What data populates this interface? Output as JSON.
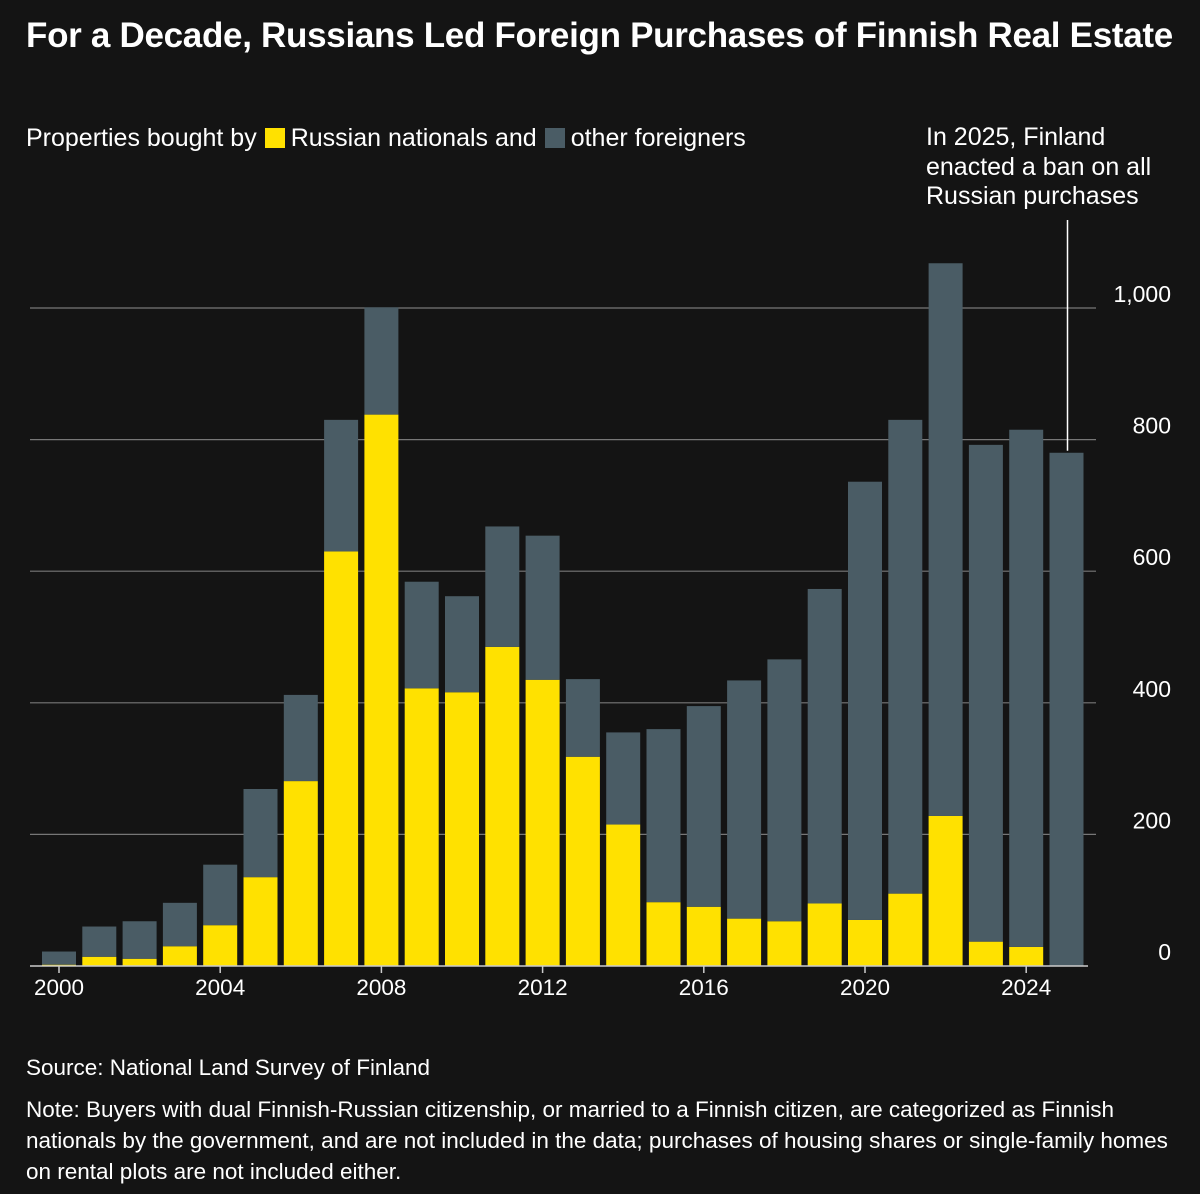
{
  "title": "For a Decade, Russians Led Foreign Purchases of Finnish Real Estate",
  "legend": {
    "prefix": "Properties bought by",
    "russian_label": "Russian nationals and",
    "other_label": "other foreigners"
  },
  "annotation": "In 2025, Finland enacted a ban on all Russian purchases",
  "source": "Source: National Land Survey of Finland",
  "note": "Note: Buyers with dual Finnish-Russian citizenship, or married to a Finnish citizen, are categorized as Finnish nationals by the government, and are not included in the data; purchases of housing shares or single-family homes on rental plots are not included either.",
  "colors": {
    "background": "#141414",
    "russian": "#ffe100",
    "other": "#4a5c65",
    "grid": "#777777",
    "text": "#ffffff"
  },
  "chart_data": {
    "type": "bar",
    "stacked": true,
    "title": "For a Decade, Russians Led Foreign Purchases of Finnish Real Estate",
    "x": [
      2000,
      2001,
      2002,
      2003,
      2004,
      2005,
      2006,
      2007,
      2008,
      2009,
      2010,
      2011,
      2012,
      2013,
      2014,
      2015,
      2016,
      2017,
      2018,
      2019,
      2020,
      2021,
      2022,
      2023,
      2024,
      2025
    ],
    "series": [
      {
        "name": "Russian nationals",
        "values": [
          2,
          14,
          11,
          30,
          62,
          135,
          281,
          630,
          838,
          422,
          416,
          485,
          435,
          318,
          215,
          97,
          90,
          72,
          68,
          95,
          70,
          110,
          228,
          37,
          29,
          0
        ]
      },
      {
        "name": "other foreigners",
        "values": [
          20,
          46,
          57,
          66,
          92,
          134,
          131,
          200,
          163,
          162,
          146,
          183,
          219,
          118,
          140,
          263,
          305,
          362,
          398,
          478,
          666,
          720,
          840,
          755,
          786,
          780
        ]
      }
    ],
    "xticks": [
      2000,
      2004,
      2008,
      2012,
      2016,
      2020,
      2024
    ],
    "yticks": [
      0,
      200,
      400,
      600,
      800,
      1000
    ],
    "ytick_labels": [
      "0",
      "200",
      "400",
      "600",
      "800",
      "1,000"
    ],
    "ylim": [
      0,
      1000
    ],
    "xlabel": "",
    "ylabel": "",
    "grid": true,
    "legend": "top-left",
    "y_axis_side": "right",
    "annotation_year": 2025
  }
}
